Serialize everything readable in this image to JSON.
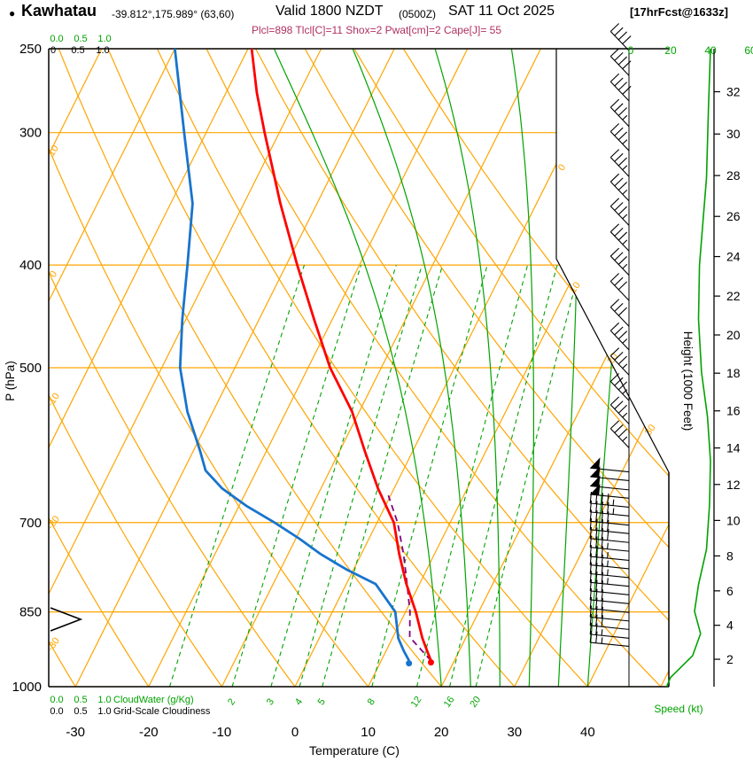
{
  "header": {
    "bullet": "●",
    "station": "Kawhatau",
    "coords": "-39.812°,175.989° (63,60)",
    "valid": "Valid 1800 NZDT",
    "zulu": "(0500Z)",
    "date": "SAT 11 Oct 2025",
    "fcst": "[17hrFcst@1633z]",
    "indices": "Plcl=898 Tlcl[C]=11 Shox=2 Pwat[cm]=2 Cape[J]= 55"
  },
  "axes": {
    "pressure_label": "P (hPa)",
    "pressure_ticks": [
      250,
      300,
      400,
      500,
      700,
      850,
      1000
    ],
    "temp_label": "Temperature (C)",
    "temp_ticks": [
      -30,
      -20,
      -10,
      0,
      10,
      20,
      30,
      40
    ],
    "height_label": "Height (1000 Feet)",
    "height_ticks": [
      2,
      4,
      6,
      8,
      10,
      12,
      14,
      16,
      18,
      20,
      22,
      24,
      26,
      28,
      30,
      32
    ],
    "speed_label": "Speed (kt)",
    "speed_ticks": [
      "0",
      "20",
      "40",
      "60"
    ],
    "cloudwater_scale": [
      "0.0",
      "0.5",
      "1.0"
    ],
    "cloudwater_label": "CloudWater (g/Kg)",
    "top_cloud_scale": [
      "0",
      "0.5",
      "1.0"
    ],
    "cloudiness_scale": [
      "0.0",
      "0.5",
      "1.0"
    ],
    "cloudiness_label": "Grid-Scale Cloudiness"
  },
  "chart_data": {
    "type": "line",
    "variant": "skew-t-log-p sounding",
    "title": "Kawhatau Valid 1800 NZDT (0500Z) SAT 11 Oct 2025",
    "pressure_range_hpa": [
      250,
      1000
    ],
    "indices": {
      "plcl": 898,
      "tlcl_c": 11,
      "shox": 2,
      "pwat_cm": 2,
      "cape_j": 55
    },
    "surface": {
      "pressure": 945,
      "temp_c": 16.8,
      "dewpoint_c": 13.8
    },
    "temperature_profile": [
      [
        945,
        16.8
      ],
      [
        925,
        15.6
      ],
      [
        900,
        14.1
      ],
      [
        850,
        11.4
      ],
      [
        800,
        8.2
      ],
      [
        750,
        5.2
      ],
      [
        700,
        2.3
      ],
      [
        650,
        -2.2
      ],
      [
        600,
        -6.5
      ],
      [
        550,
        -11.0
      ],
      [
        500,
        -17.0
      ],
      [
        450,
        -22.5
      ],
      [
        400,
        -28.5
      ],
      [
        350,
        -35.0
      ],
      [
        300,
        -42.0
      ],
      [
        275,
        -45.8
      ],
      [
        250,
        -49.5
      ]
    ],
    "dewpoint_profile": [
      [
        945,
        13.8
      ],
      [
        925,
        12.4
      ],
      [
        900,
        10.8
      ],
      [
        850,
        8.6
      ],
      [
        800,
        4.0
      ],
      [
        775,
        -1.0
      ],
      [
        750,
        -5.5
      ],
      [
        725,
        -9.5
      ],
      [
        700,
        -14.0
      ],
      [
        675,
        -19.0
      ],
      [
        650,
        -23.5
      ],
      [
        625,
        -27.0
      ],
      [
        600,
        -29.0
      ],
      [
        550,
        -33.5
      ],
      [
        500,
        -37.5
      ],
      [
        450,
        -40.5
      ],
      [
        400,
        -43.5
      ],
      [
        350,
        -47.0
      ],
      [
        300,
        -53.0
      ],
      [
        250,
        -60.0
      ]
    ],
    "parcel_profile": [
      [
        945,
        16.8
      ],
      [
        898,
        12.3
      ],
      [
        850,
        10.6
      ],
      [
        800,
        8.3
      ],
      [
        750,
        5.8
      ],
      [
        700,
        2.8
      ],
      [
        660,
        -0.3
      ]
    ],
    "speed_profile_kt": [
      [
        250,
        40
      ],
      [
        283,
        39
      ],
      [
        331,
        38
      ],
      [
        400,
        34.5
      ],
      [
        450,
        34
      ],
      [
        505,
        35.5
      ],
      [
        556,
        38.5
      ],
      [
        612,
        40
      ],
      [
        674,
        39.5
      ],
      [
        742,
        38
      ],
      [
        801,
        34
      ],
      [
        849,
        32
      ],
      [
        891,
        35
      ],
      [
        935,
        31
      ],
      [
        980,
        20
      ],
      [
        1000,
        18
      ]
    ],
    "wind_barbs": [
      [
        251,
        40
      ],
      [
        265,
        40
      ],
      [
        280,
        40
      ],
      [
        296,
        38
      ],
      [
        312,
        38
      ],
      [
        330,
        37
      ],
      [
        348,
        36
      ],
      [
        367,
        36
      ],
      [
        388,
        35
      ],
      [
        409,
        35
      ],
      [
        432,
        34
      ],
      [
        457,
        34
      ],
      [
        481,
        35
      ],
      [
        508,
        35
      ],
      [
        537,
        36
      ],
      [
        565,
        37
      ],
      [
        595,
        38
      ],
      [
        627,
        50
      ],
      [
        639,
        50
      ],
      [
        652,
        50
      ],
      [
        664,
        50
      ],
      [
        677,
        45
      ],
      [
        690,
        45
      ],
      [
        704,
        40
      ],
      [
        717,
        40
      ],
      [
        731,
        40
      ],
      [
        745,
        38
      ],
      [
        760,
        38
      ],
      [
        774,
        36
      ],
      [
        789,
        36
      ],
      [
        804,
        35
      ],
      [
        819,
        34
      ],
      [
        835,
        33
      ],
      [
        851,
        32
      ],
      [
        867,
        31
      ],
      [
        883,
        30
      ],
      [
        900,
        28
      ],
      [
        916,
        26
      ]
    ],
    "mixing_ratio_lines": [
      1,
      2,
      3,
      4,
      5,
      8,
      12,
      16,
      20
    ],
    "mixing_ratio_labeled": [
      2,
      3,
      4,
      5,
      8,
      12,
      16,
      20
    ],
    "moist_adiabat_starts_c": [
      20,
      24,
      28,
      32,
      36,
      40
    ],
    "dry_adiabat_labels": [
      10,
      0,
      -10,
      -20,
      -30
    ],
    "isotherm_labels": [
      0,
      10,
      20,
      30
    ],
    "colors": {
      "temperature": "#FF0000",
      "dewpoint": "#1874CD",
      "parcel": "#800080",
      "grid_orange": "#FFA500",
      "grid_green": "#00A300",
      "speed_green": "#00A300",
      "indices_text": "#B03060",
      "axis_black": "#000000"
    }
  }
}
